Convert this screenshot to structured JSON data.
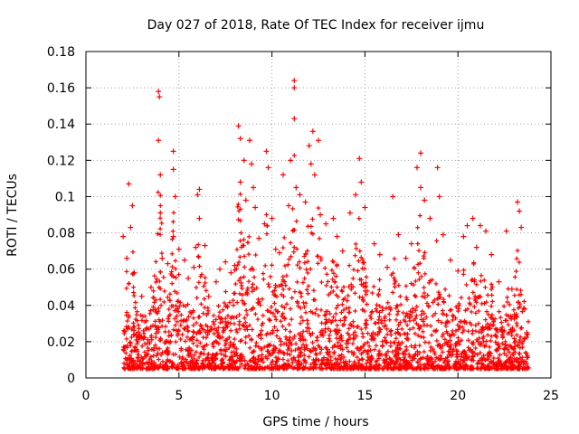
{
  "chart_data": {
    "type": "scatter",
    "title": "Day 027 of 2018, Rate Of TEC Index for receiver ijmu",
    "xlabel": "GPS time / hours",
    "ylabel": "ROTI / TECUs",
    "xlim": [
      0,
      25
    ],
    "ylim": [
      0,
      0.18
    ],
    "xticks": [
      0,
      5,
      10,
      15,
      20,
      25
    ],
    "yticks": [
      0,
      0.02,
      0.04,
      0.06,
      0.08,
      0.1,
      0.12,
      0.14,
      0.16,
      0.18
    ],
    "xtick_labels": [
      "0",
      "5",
      "10",
      "15",
      "20",
      "25"
    ],
    "ytick_labels": [
      "0",
      "0.02",
      "0.04",
      "0.06",
      "0.08",
      "0.1",
      "0.12",
      "0.14",
      "0.16",
      "0.18"
    ],
    "grid": true,
    "marker": "plus",
    "color": "#ff0000",
    "series": [
      {
        "name": "ROTI",
        "points": [
          [
            2.0,
            0.078
          ],
          [
            2.2,
            0.066
          ],
          [
            2.3,
            0.107
          ],
          [
            2.4,
            0.083
          ],
          [
            2.5,
            0.095
          ],
          [
            2.6,
            0.058
          ],
          [
            3.0,
            0.045
          ],
          [
            3.5,
            0.05
          ],
          [
            3.9,
            0.158
          ],
          [
            3.95,
            0.155
          ],
          [
            3.9,
            0.131
          ],
          [
            4.0,
            0.112
          ],
          [
            4.0,
            0.091
          ],
          [
            4.1,
            0.066
          ],
          [
            4.4,
            0.063
          ],
          [
            4.7,
            0.125
          ],
          [
            4.7,
            0.115
          ],
          [
            4.8,
            0.1
          ],
          [
            4.7,
            0.078
          ],
          [
            5.0,
            0.071
          ],
          [
            5.3,
            0.065
          ],
          [
            5.5,
            0.055
          ],
          [
            5.8,
            0.061
          ],
          [
            5.9,
            0.072
          ],
          [
            6.0,
            0.101
          ],
          [
            6.1,
            0.104
          ],
          [
            6.1,
            0.088
          ],
          [
            6.4,
            0.073
          ],
          [
            6.6,
            0.045
          ],
          [
            7.0,
            0.053
          ],
          [
            7.2,
            0.06
          ],
          [
            7.5,
            0.064
          ],
          [
            7.8,
            0.058
          ],
          [
            8.0,
            0.062
          ],
          [
            8.2,
            0.139
          ],
          [
            8.3,
            0.132
          ],
          [
            8.3,
            0.108
          ],
          [
            8.5,
            0.12
          ],
          [
            8.6,
            0.098
          ],
          [
            8.8,
            0.131
          ],
          [
            8.9,
            0.118
          ],
          [
            9.0,
            0.105
          ],
          [
            9.1,
            0.094
          ],
          [
            9.3,
            0.077
          ],
          [
            9.6,
            0.085
          ],
          [
            9.7,
            0.125
          ],
          [
            9.8,
            0.116
          ],
          [
            10.0,
            0.088
          ],
          [
            10.2,
            0.071
          ],
          [
            10.4,
            0.069
          ],
          [
            10.6,
            0.112
          ],
          [
            10.9,
            0.095
          ],
          [
            11.0,
            0.12
          ],
          [
            11.2,
            0.164
          ],
          [
            11.2,
            0.16
          ],
          [
            11.2,
            0.143
          ],
          [
            11.3,
            0.105
          ],
          [
            11.5,
            0.101
          ],
          [
            11.8,
            0.097
          ],
          [
            12.0,
            0.128
          ],
          [
            12.1,
            0.118
          ],
          [
            12.2,
            0.136
          ],
          [
            12.3,
            0.112
          ],
          [
            12.5,
            0.131
          ],
          [
            12.6,
            0.09
          ],
          [
            12.9,
            0.085
          ],
          [
            13.3,
            0.088
          ],
          [
            13.5,
            0.078
          ],
          [
            13.8,
            0.07
          ],
          [
            14.2,
            0.091
          ],
          [
            14.5,
            0.101
          ],
          [
            14.7,
            0.121
          ],
          [
            14.8,
            0.108
          ],
          [
            15.0,
            0.094
          ],
          [
            15.5,
            0.074
          ],
          [
            15.8,
            0.068
          ],
          [
            16.2,
            0.061
          ],
          [
            16.5,
            0.1
          ],
          [
            16.8,
            0.079
          ],
          [
            17.2,
            0.066
          ],
          [
            17.5,
            0.074
          ],
          [
            17.8,
            0.116
          ],
          [
            18.0,
            0.124
          ],
          [
            18.0,
            0.105
          ],
          [
            18.2,
            0.098
          ],
          [
            18.5,
            0.088
          ],
          [
            18.9,
            0.116
          ],
          [
            19.0,
            0.1
          ],
          [
            19.2,
            0.079
          ],
          [
            19.6,
            0.065
          ],
          [
            20.0,
            0.059
          ],
          [
            20.3,
            0.078
          ],
          [
            20.5,
            0.084
          ],
          [
            20.8,
            0.088
          ],
          [
            21.0,
            0.072
          ],
          [
            21.2,
            0.084
          ],
          [
            21.5,
            0.081
          ],
          [
            21.8,
            0.068
          ],
          [
            22.2,
            0.053
          ],
          [
            22.6,
            0.081
          ],
          [
            22.9,
            0.049
          ],
          [
            23.2,
            0.097
          ],
          [
            23.3,
            0.092
          ],
          [
            23.4,
            0.083
          ],
          [
            23.6,
            0.038
          ],
          [
            23.7,
            0.025
          ]
        ]
      }
    ]
  }
}
